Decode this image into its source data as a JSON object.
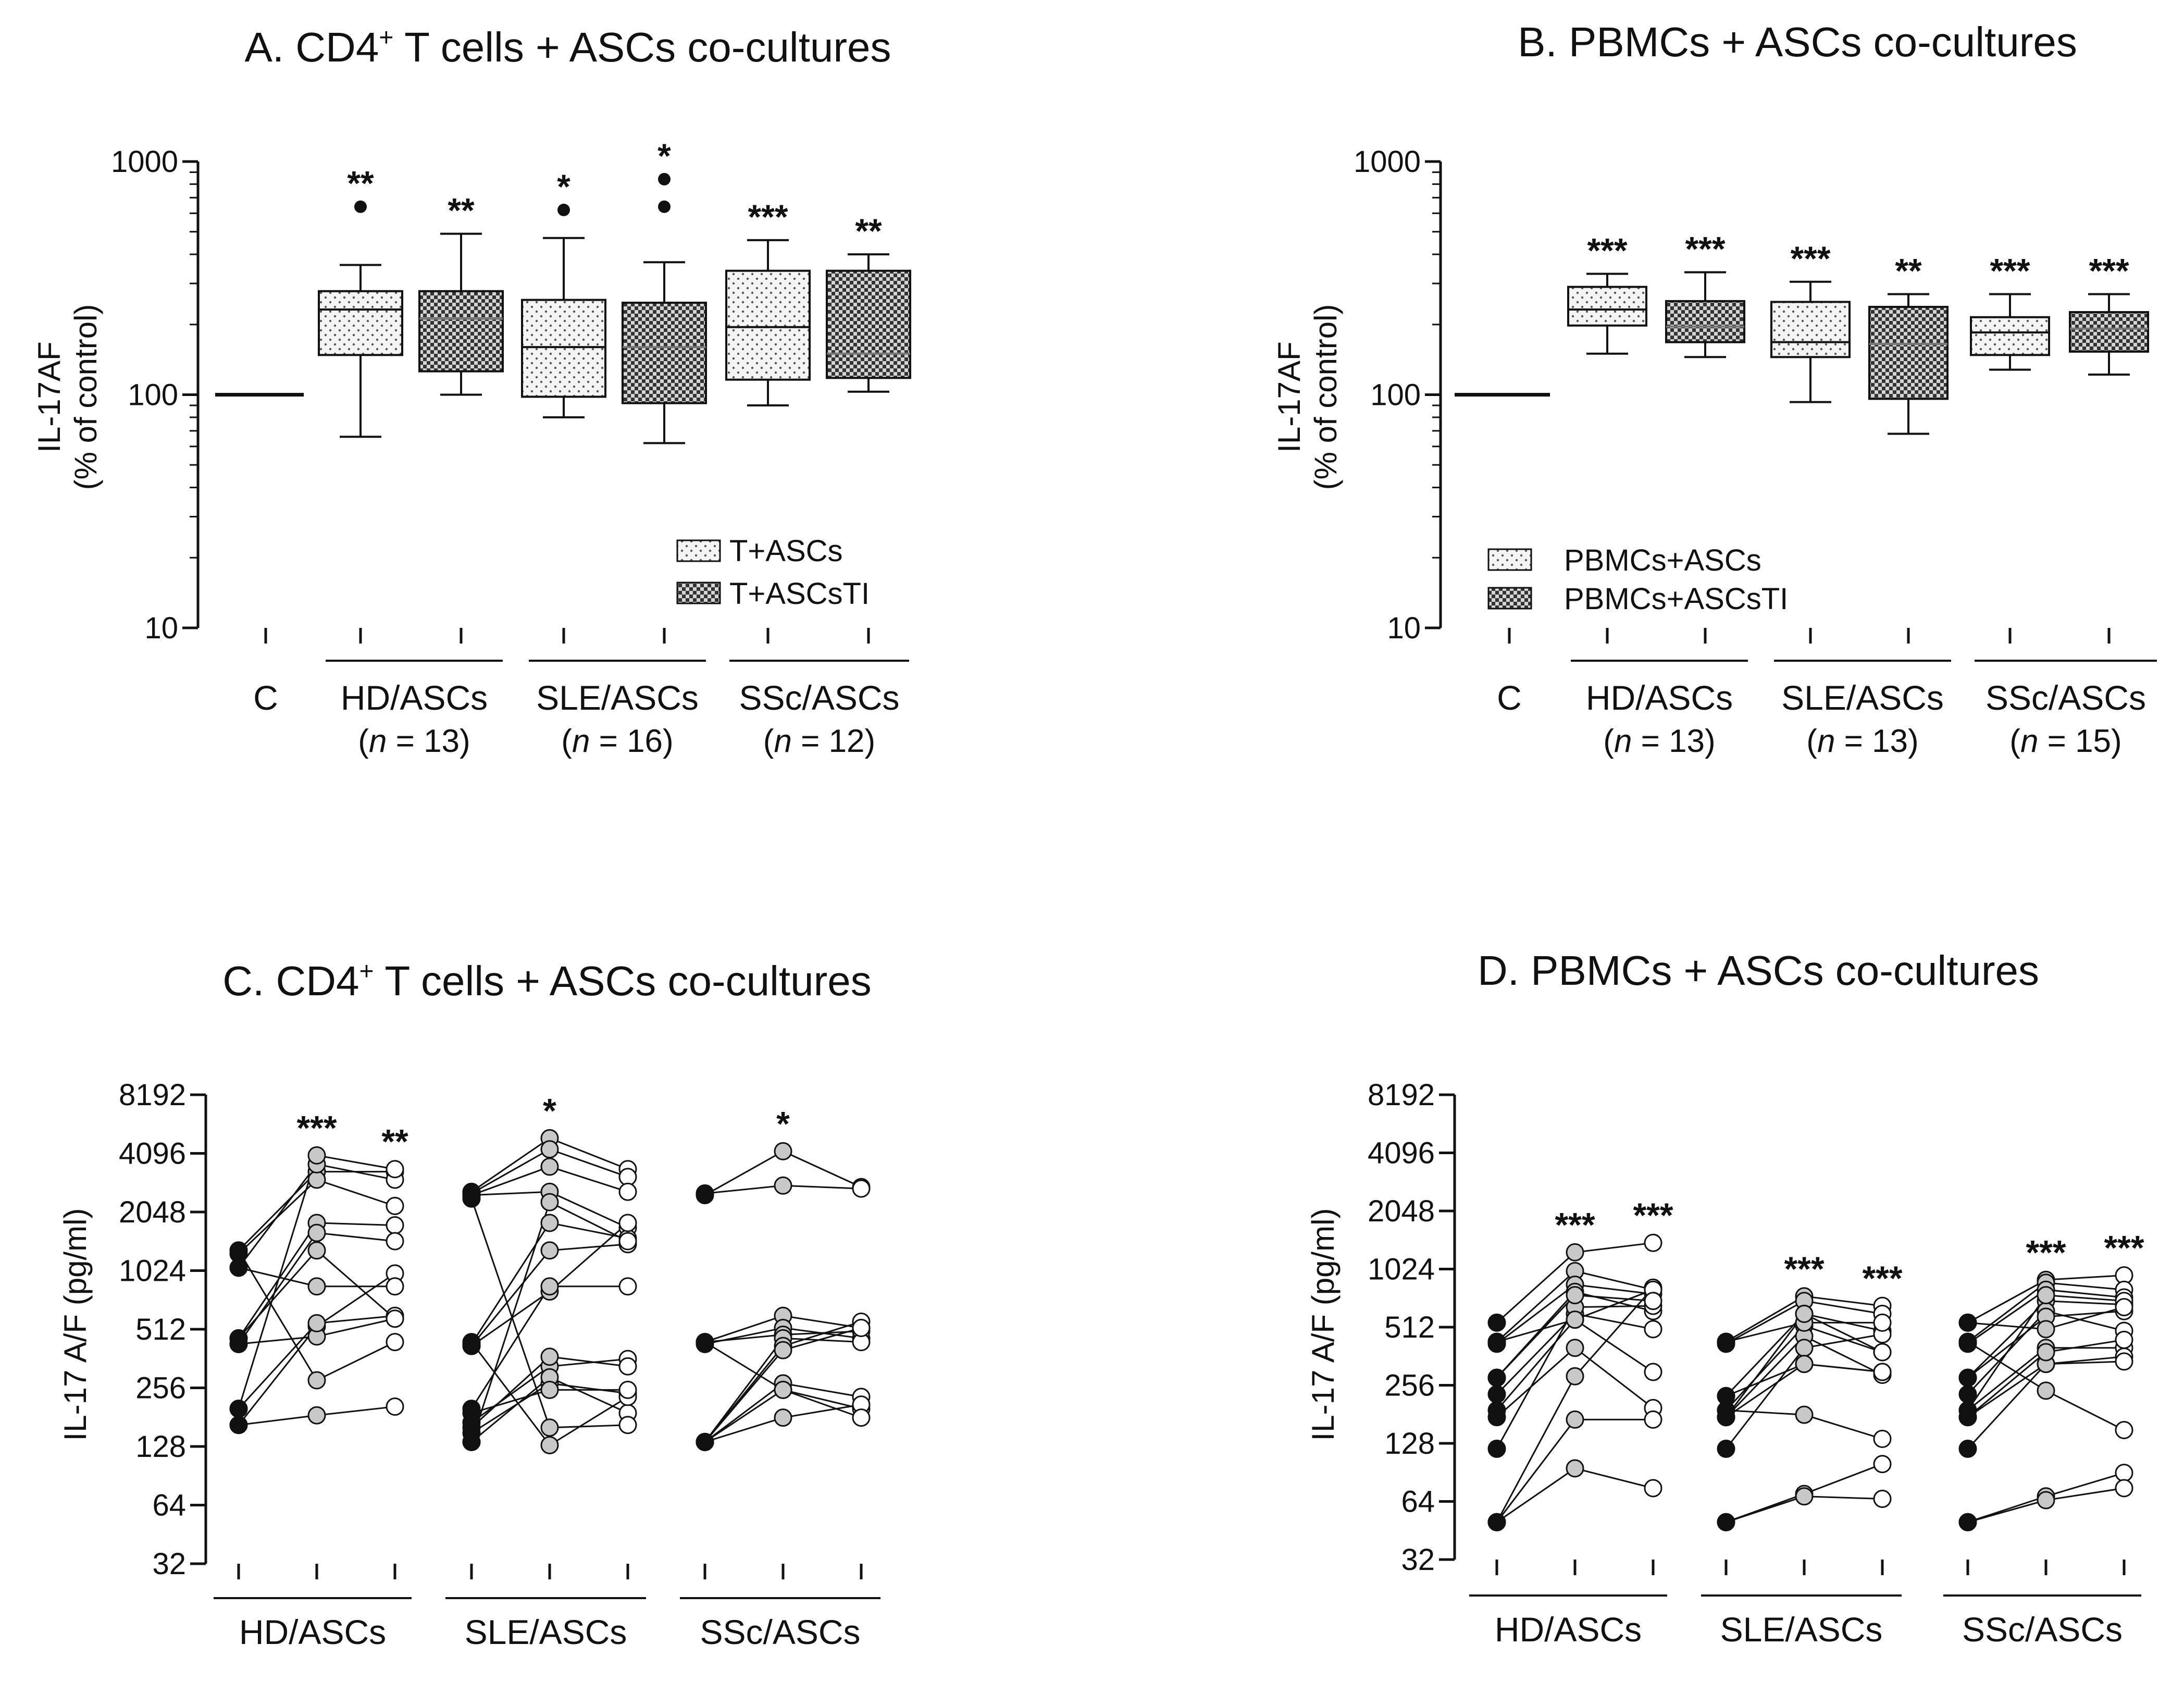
{
  "palette": {
    "ink": "#111111",
    "white": "#ffffff",
    "grey_marker": "#c8c8c8",
    "black_marker": "#111111"
  },
  "chart_data": [
    {
      "id": "A",
      "type": "box",
      "title": "A. CD4⁺ T cells + ASCs co-cultures",
      "title_prefix": "A. CD4",
      "title_sup": "+",
      "title_suffix": " T cells + ASCs co-cultures",
      "ylabel": "IL-17AF",
      "ylabel2": "(% of control)",
      "yscale": "log10",
      "ylim": [
        10,
        1000
      ],
      "yticks": [
        "10",
        "100",
        "1000"
      ],
      "control": {
        "label": "C",
        "value": 100
      },
      "legend": [
        "T+ASCs",
        "T+ASCsTI"
      ],
      "groups": [
        {
          "label": "HD/ASCs",
          "n_prefix": "(",
          "n_var": "n",
          "n_suffix": " = 13)"
        },
        {
          "label": "SLE/ASCs",
          "n_prefix": "(",
          "n_var": "n",
          "n_suffix": " = 16)"
        },
        {
          "label": "SSc/ASCs",
          "n_prefix": "(",
          "n_var": "n",
          "n_suffix": " = 12)"
        }
      ],
      "boxes": [
        {
          "group": 0,
          "pattern": "dots",
          "min": 66,
          "q1": 148,
          "median": 232,
          "q3": 278,
          "max": 360,
          "outliers": [
            640
          ],
          "sig": "**"
        },
        {
          "group": 0,
          "pattern": "check",
          "min": 100,
          "q1": 126,
          "median": 212,
          "q3": 278,
          "max": 490,
          "outliers": [],
          "sig": "**"
        },
        {
          "group": 1,
          "pattern": "dots",
          "min": 80,
          "q1": 98,
          "median": 160,
          "q3": 255,
          "max": 470,
          "outliers": [
            620
          ],
          "sig": "*"
        },
        {
          "group": 1,
          "pattern": "check",
          "min": 62,
          "q1": 92,
          "median": 160,
          "q3": 248,
          "max": 370,
          "outliers": [
            640,
            840
          ],
          "sig": "*"
        },
        {
          "group": 2,
          "pattern": "dots",
          "min": 90,
          "q1": 116,
          "median": 195,
          "q3": 340,
          "max": 460,
          "outliers": [],
          "sig": "***"
        },
        {
          "group": 2,
          "pattern": "check",
          "min": 103,
          "q1": 118,
          "median": 150,
          "q3": 340,
          "max": 400,
          "outliers": [],
          "sig": "**"
        }
      ]
    },
    {
      "id": "B",
      "type": "box",
      "title": "B. PBMCs + ASCs co-cultures",
      "ylabel": "IL-17AF",
      "ylabel2": "(% of control)",
      "yscale": "log10",
      "ylim": [
        10,
        1000
      ],
      "yticks": [
        "10",
        "100",
        "1000"
      ],
      "control": {
        "label": "C",
        "value": 100
      },
      "legend": [
        "PBMCs+ASCs",
        "PBMCs+ASCsTI"
      ],
      "groups": [
        {
          "label": "HD/ASCs",
          "n_prefix": "(",
          "n_var": "n",
          "n_suffix": " = 13)"
        },
        {
          "label": "SLE/ASCs",
          "n_prefix": "(",
          "n_var": "n",
          "n_suffix": " = 13)"
        },
        {
          "label": "SSc/ASCs",
          "n_prefix": "(",
          "n_var": "n",
          "n_suffix": " = 15)"
        }
      ],
      "boxes": [
        {
          "group": 0,
          "pattern": "dots",
          "min": 150,
          "q1": 198,
          "median": 232,
          "q3": 290,
          "max": 330,
          "outliers": [],
          "sig": "***"
        },
        {
          "group": 0,
          "pattern": "check",
          "min": 145,
          "q1": 168,
          "median": 196,
          "q3": 252,
          "max": 335,
          "outliers": [],
          "sig": "***"
        },
        {
          "group": 1,
          "pattern": "dots",
          "min": 93,
          "q1": 145,
          "median": 168,
          "q3": 250,
          "max": 305,
          "outliers": [],
          "sig": "***"
        },
        {
          "group": 1,
          "pattern": "check",
          "min": 68,
          "q1": 96,
          "median": 165,
          "q3": 238,
          "max": 270,
          "outliers": [],
          "sig": "**"
        },
        {
          "group": 2,
          "pattern": "dots",
          "min": 128,
          "q1": 148,
          "median": 185,
          "q3": 215,
          "max": 270,
          "outliers": [],
          "sig": "***"
        },
        {
          "group": 2,
          "pattern": "check",
          "min": 122,
          "q1": 153,
          "median": 192,
          "q3": 226,
          "max": 270,
          "outliers": [],
          "sig": "***"
        }
      ]
    },
    {
      "id": "C",
      "type": "paired-scatter",
      "title": "C. CD4⁺ T cells + ASCs co-cultures",
      "title_prefix": "C. CD4",
      "title_sup": "+",
      "title_suffix": " T cells + ASCs co-cultures",
      "ylabel": "IL-17 A/F (pg/ml)",
      "yscale": "log2",
      "ylim": [
        32,
        8192
      ],
      "yticks": [
        "32",
        "64",
        "128",
        "256",
        "512",
        "1024",
        "2048",
        "4096",
        "8192"
      ],
      "groups": [
        {
          "label": "HD/ASCs",
          "sig": [
            "***",
            "**"
          ],
          "lines": [
            [
              1300,
              3300,
              3300
            ],
            [
              1250,
              3000,
              2200
            ],
            [
              1060,
              3600,
              3000
            ],
            [
              460,
              1800,
              1750
            ],
            [
              430,
              1600,
              1450
            ],
            [
              200,
              4000,
              3400
            ],
            [
              165,
              530,
              990
            ],
            [
              430,
              470,
              580
            ],
            [
              1300,
              280,
              440
            ],
            [
              200,
              550,
              600
            ],
            [
              1060,
              850,
              850
            ],
            [
              460,
              1300,
              580
            ],
            [
              165,
              185,
              205
            ]
          ]
        },
        {
          "label": "SLE/ASCs",
          "sig": [
            "*",
            ""
          ],
          "lines": [
            [
              2600,
              4900,
              3400
            ],
            [
              2550,
              4300,
              3100
            ],
            [
              2500,
              3500,
              2600
            ],
            [
              2500,
              2600,
              1700
            ],
            [
              430,
              1800,
              1500
            ],
            [
              420,
              1300,
              1400
            ],
            [
              420,
              800,
              1800
            ],
            [
              200,
              850,
              850
            ],
            [
              170,
              330,
              360
            ],
            [
              160,
              370,
              330
            ],
            [
              150,
              270,
              240
            ],
            [
              135,
              290,
              190
            ],
            [
              2400,
              160,
              165
            ],
            [
              440,
              130,
              230
            ],
            [
              135,
              2300,
              1450
            ],
            [
              190,
              250,
              250
            ]
          ]
        },
        {
          "label": "SSc/ASCs",
          "sig": [
            "*",
            ""
          ],
          "lines": [
            [
              2500,
              4200,
              2750
            ],
            [
              2550,
              2800,
              2700
            ],
            [
              440,
              600,
              520
            ],
            [
              430,
              520,
              460
            ],
            [
              440,
              480,
              500
            ],
            [
              135,
              460,
              440
            ],
            [
              135,
              420,
              560
            ],
            [
              135,
              400,
              520
            ],
            [
              135,
              270,
              230
            ],
            [
              135,
              250,
              200
            ],
            [
              135,
              180,
              210
            ],
            [
              440,
              250,
              180
            ]
          ]
        }
      ]
    },
    {
      "id": "D",
      "type": "paired-scatter",
      "title": "D. PBMCs + ASCs co-cultures",
      "ylabel": "IL-17 A/F (pg/ml)",
      "yscale": "log2",
      "ylim": [
        32,
        8192
      ],
      "yticks": [
        "32",
        "64",
        "128",
        "256",
        "512",
        "1024",
        "2048",
        "4096",
        "8192"
      ],
      "groups": [
        {
          "label": "HD/ASCs",
          "sig": [
            "***",
            "***"
          ],
          "lines": [
            [
              540,
              1250,
              1400
            ],
            [
              430,
              1000,
              800
            ],
            [
              420,
              850,
              760
            ],
            [
              280,
              780,
              620
            ],
            [
              230,
              600,
              500
            ],
            [
              190,
              560,
              300
            ],
            [
              175,
              400,
              195
            ],
            [
              120,
              650,
              660
            ],
            [
              50,
              285,
              820
            ],
            [
              50,
              170,
              170
            ],
            [
              50,
              95,
              75
            ],
            [
              430,
              560,
              800
            ],
            [
              280,
              750,
              700
            ]
          ]
        },
        {
          "label": "SLE/ASCs",
          "sig": [
            "***",
            "***"
          ],
          "lines": [
            [
              430,
              740,
              660
            ],
            [
              420,
              700,
              600
            ],
            [
              225,
              600,
              490
            ],
            [
              190,
              520,
              380
            ],
            [
              175,
              460,
              290
            ],
            [
              175,
              330,
              300
            ],
            [
              120,
              400,
              470
            ],
            [
              50,
              70,
              100
            ],
            [
              50,
              68,
              66
            ],
            [
              190,
              180,
              135
            ],
            [
              430,
              540,
              540
            ],
            [
              225,
              330,
              300
            ],
            [
              175,
              600,
              380
            ]
          ]
        },
        {
          "label": "SSc/ASCs",
          "sig": [
            "***",
            "***"
          ],
          "lines": [
            [
              540,
              900,
              950
            ],
            [
              430,
              870,
              800
            ],
            [
              420,
              800,
              730
            ],
            [
              280,
              700,
              670
            ],
            [
              230,
              620,
              490
            ],
            [
              190,
              400,
              400
            ],
            [
              175,
              330,
              360
            ],
            [
              120,
              330,
              340
            ],
            [
              50,
              68,
              90
            ],
            [
              50,
              65,
              75
            ],
            [
              430,
              240,
              150
            ],
            [
              280,
              580,
              620
            ],
            [
              190,
              750,
              700
            ],
            [
              540,
              500,
              650
            ],
            [
              175,
              380,
              440
            ]
          ]
        }
      ]
    }
  ]
}
